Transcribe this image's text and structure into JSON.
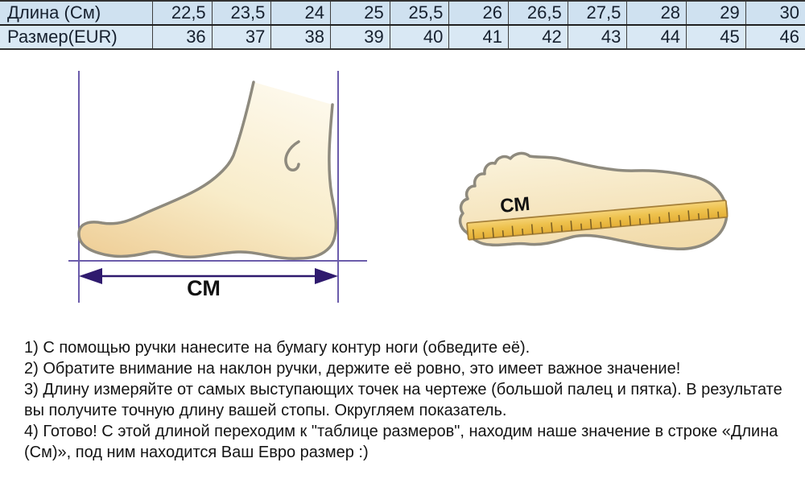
{
  "size_table": {
    "rows": [
      {
        "label": "Длина (См)",
        "values": [
          "22,5",
          "23,5",
          "24",
          "25",
          "25,5",
          "26",
          "26,5",
          "27,5",
          "28",
          "29",
          "30"
        ]
      },
      {
        "label": "Размер(EUR)",
        "values": [
          "36",
          "37",
          "38",
          "39",
          "40",
          "41",
          "42",
          "43",
          "44",
          "45",
          "46"
        ]
      }
    ]
  },
  "diagrams": {
    "side_view": {
      "label": "СМ"
    },
    "top_view": {
      "label": "СМ"
    }
  },
  "instructions": {
    "items": [
      "1) С помощью ручки нанесите на бумагу контур ноги (обведите её).",
      "2) Обратите внимание на наклон ручки, держите её ровно, это имеет важное значение!",
      "3) Длину измеряйте от самых выступающих точек на чертеже (большой палец и пятка). В результате вы получите точную длину вашей стопы. Округляем показатель.",
      "4) Готово! С этой длиной переходим к \"таблице размеров\", находим наше значение в строке «Длина (См)», под ним находится Ваш Евро размер :)"
    ]
  },
  "colors": {
    "table_row_top_bg": "#cfe1f0",
    "table_row_bottom_bg": "#d9e8f4",
    "table_text": "#16202e",
    "guide_line": "#6b5cab",
    "arrow": "#2f1a6e",
    "foot_outline": "#8e8a7e",
    "foot_fill_light": "#fdf8ea",
    "foot_fill_dark": "#efd09a",
    "ruler_fill": "#eec24e",
    "ruler_border": "#a5803a",
    "ruler_tick": "#7d6124",
    "label_text": "#111111"
  }
}
